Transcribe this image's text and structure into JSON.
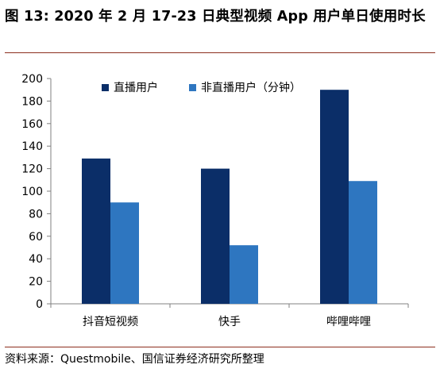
{
  "title": "图 13: 2020 年 2 月 17-23 日典型视频 App 用户单日使用时长",
  "source": "资料来源：Questmobile、国信证券经济研究所整理",
  "colors": {
    "series1": "#0b2e68",
    "series2": "#2e76c0",
    "rule": "#8c2e1e",
    "axis": "#808080"
  },
  "chart_data": {
    "type": "bar",
    "title": "图 13: 2020 年 2 月 17-23 日典型视频 App 用户单日使用时长",
    "categories": [
      "抖音短视频",
      "快手",
      "哔哩哔哩"
    ],
    "series": [
      {
        "name": "直播用户",
        "values": [
          129,
          120,
          190
        ]
      },
      {
        "name": "非直播用户（分钟）",
        "values": [
          90,
          52,
          109
        ]
      }
    ],
    "ylim": [
      0,
      200
    ],
    "yticks": [
      0,
      20,
      40,
      60,
      80,
      100,
      120,
      140,
      160,
      180,
      200
    ],
    "grid": false,
    "legend": "top"
  }
}
